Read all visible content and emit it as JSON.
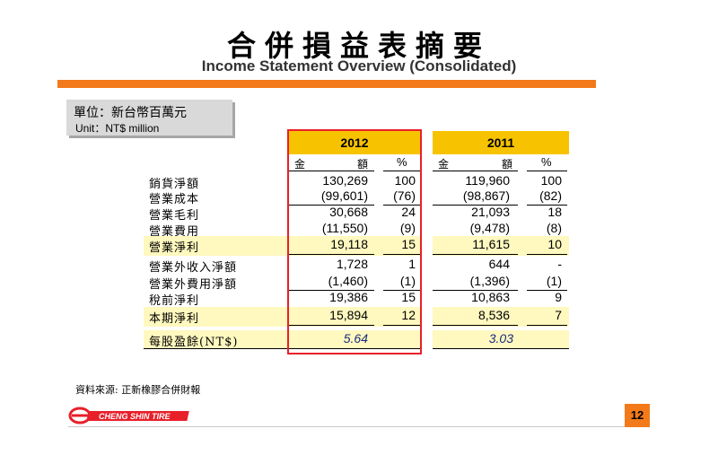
{
  "title_zh": "合併損益表摘要",
  "title_en": "Income Statement Overview (Consolidated)",
  "unit": {
    "zh": "單位：新台幣百萬元",
    "en": "Unit：NT$ million"
  },
  "years": {
    "y2012": "2012",
    "y2011": "2011"
  },
  "headers": {
    "amount_left": "金",
    "amount_right": "額",
    "pct": "%"
  },
  "rows": [
    {
      "label": "銷貨淨額",
      "v2012": "130,269",
      "p2012": "100",
      "v2011": "119,960",
      "p2011": "100",
      "highlight": false
    },
    {
      "label": "營業成本",
      "v2012": "(99,601)",
      "p2012": "(76)",
      "v2011": "(98,867)",
      "p2011": "(82)",
      "highlight": false
    },
    {
      "label": "營業毛利",
      "v2012": "30,668",
      "p2012": "24",
      "v2011": "21,093",
      "p2011": "18",
      "highlight": false
    },
    {
      "label": "營業費用",
      "v2012": "(11,550)",
      "p2012": "(9)",
      "v2011": "(9,478)",
      "p2011": "(8)",
      "highlight": false
    },
    {
      "label": "營業淨利",
      "v2012": "19,118",
      "p2012": "15",
      "v2011": "11,615",
      "p2011": "10",
      "highlight": true
    },
    {
      "label": "營業外收入淨額",
      "v2012": "1,728",
      "p2012": "1",
      "v2011": "644",
      "p2011": "-",
      "highlight": false
    },
    {
      "label": "營業外費用淨額",
      "v2012": "(1,460)",
      "p2012": "(1)",
      "v2011": "(1,396)",
      "p2011": "(1)",
      "highlight": false
    },
    {
      "label": "稅前淨利",
      "v2012": "19,386",
      "p2012": "15",
      "v2011": "10,863",
      "p2011": "9",
      "highlight": false
    },
    {
      "label": "本期淨利",
      "v2012": "15,894",
      "p2012": "12",
      "v2011": "8,536",
      "p2011": "7",
      "highlight": true
    }
  ],
  "eps": {
    "label": "每股盈餘(NT$)",
    "v2012": "5.64",
    "v2011": "3.03"
  },
  "footnote": "資料來源: 正新橡膠合併財報",
  "logo_text": "CHENG SHIN TIRE",
  "page_number": "12",
  "colors": {
    "accent": "#f27a1a",
    "year_header": "#f7c300",
    "highlight": "#fff8bf",
    "frame": "#e8202a",
    "logo_red": "#e8202a"
  }
}
